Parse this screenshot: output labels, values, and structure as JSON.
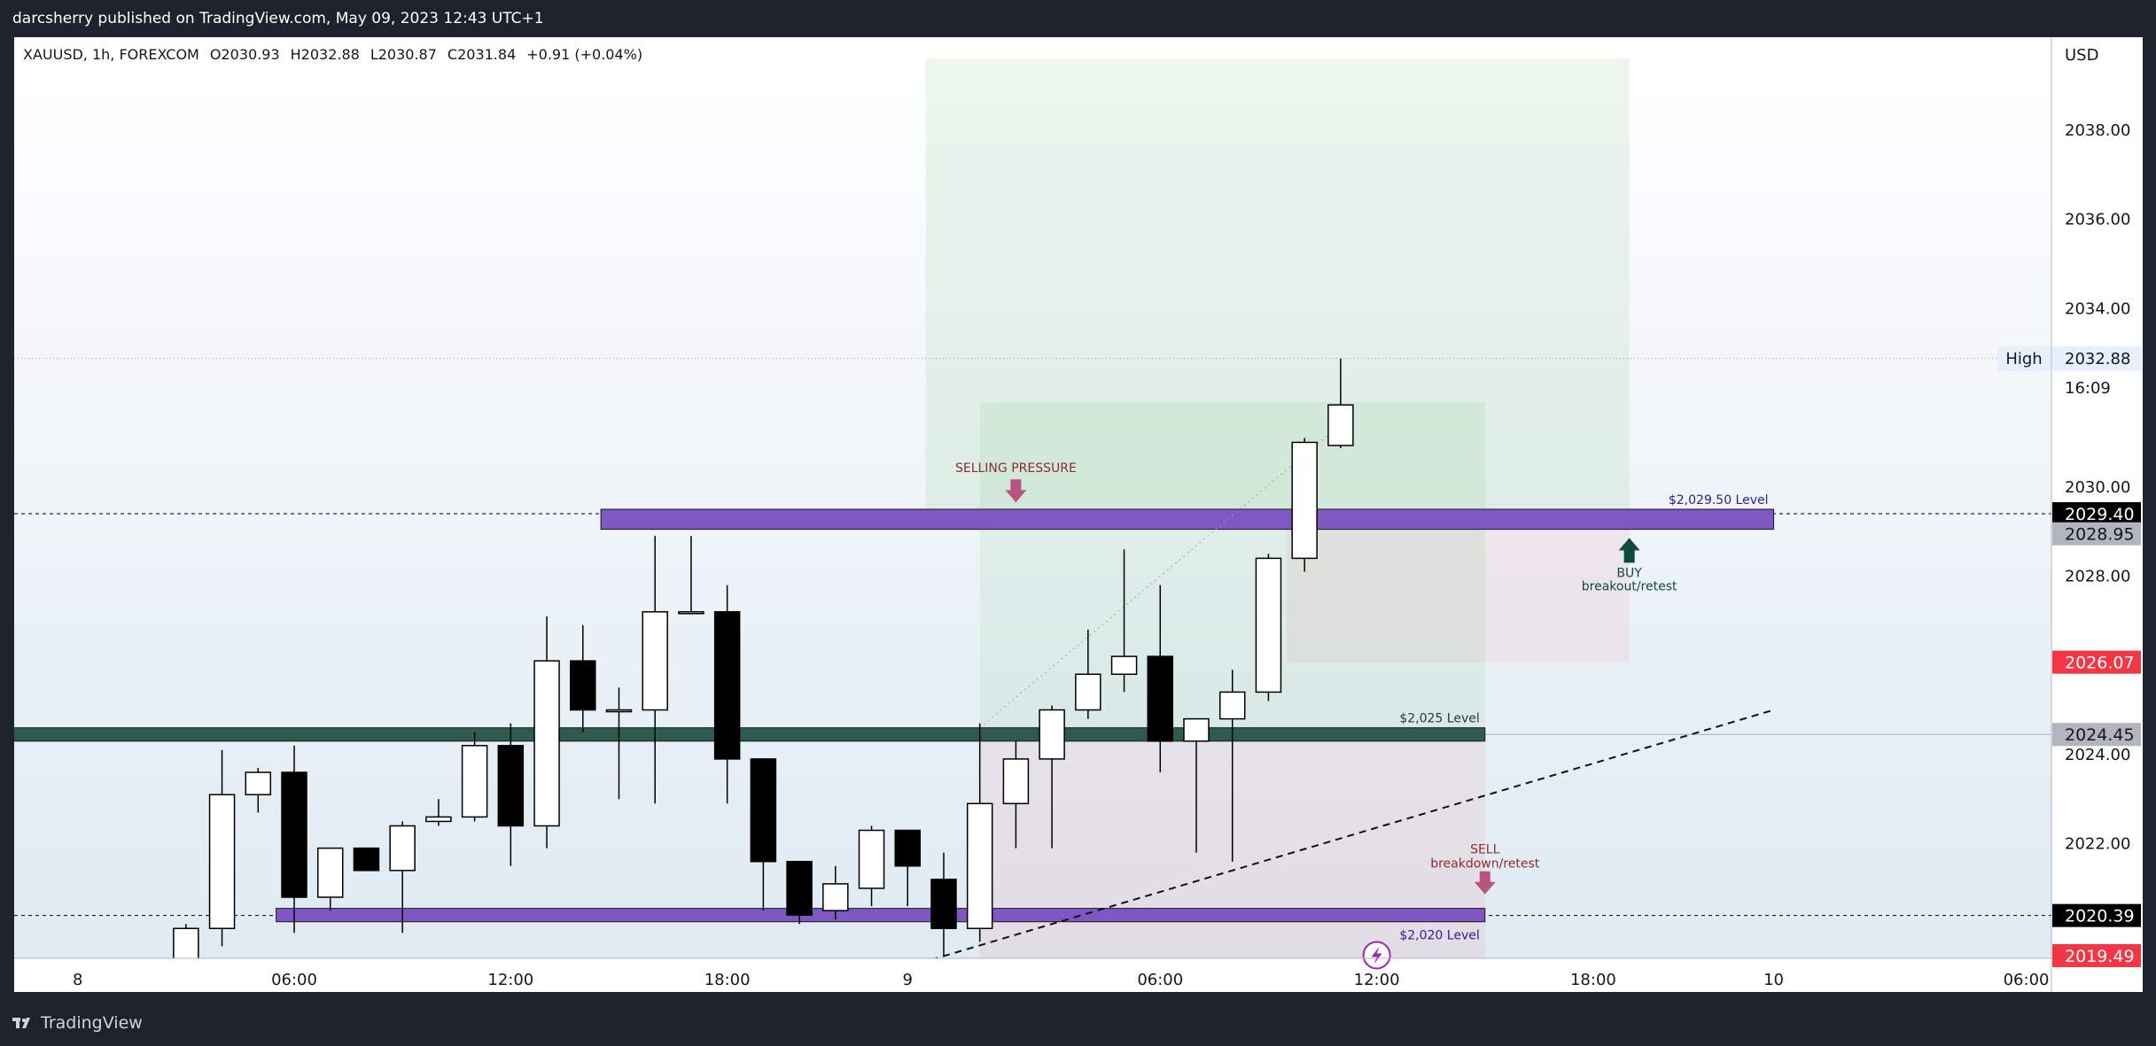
{
  "header": {
    "published_by": "darcsherry published on TradingView.com, May 09, 2023 12:43 UTC+1"
  },
  "footer": {
    "brand": "TradingView"
  },
  "colors": {
    "frame": "#1e222d",
    "bullish": "#ffffff",
    "bearish": "#000000",
    "zone": "#7e57c2",
    "zone_dark": "#2e5a50",
    "high_bg": "#e8f0fb",
    "price_last": "#000000",
    "price_red": "#f23645",
    "price_gray": "#9598a1"
  },
  "chart_data": {
    "type": "candlestick",
    "symbol": "XAUUSD",
    "interval": "1h",
    "exchange": "FOREXCOM",
    "ohlc_header": {
      "symbol_line": "XAUUSD, 1h, FOREXCOM",
      "open": "O2030.93",
      "high": "H2032.88",
      "low": "L2030.87",
      "close": "C2031.84",
      "change": "+0.91 (+0.04%)"
    },
    "currency_label": "USD",
    "y_range": [
      2019.1,
      2039.7
    ],
    "y_ticks": [
      {
        "value": 2038,
        "label": "2038.00"
      },
      {
        "value": 2036,
        "label": "2036.00"
      },
      {
        "value": 2034,
        "label": "2034.00"
      },
      {
        "value": 2030,
        "label": "2030.00"
      },
      {
        "value": 2028,
        "label": "2028.00"
      },
      {
        "value": 2024,
        "label": "2024.00"
      },
      {
        "value": 2022,
        "label": "2022.00"
      }
    ],
    "x_ticks": [
      {
        "index": -6,
        "label": "8"
      },
      {
        "index": 0,
        "label": "06:00"
      },
      {
        "index": 6,
        "label": "12:00"
      },
      {
        "index": 12,
        "label": "18:00"
      },
      {
        "index": 17,
        "label": "9"
      },
      {
        "index": 24,
        "label": "06:00"
      },
      {
        "index": 30,
        "label": "12:00"
      },
      {
        "index": 36,
        "label": "18:00"
      },
      {
        "index": 41,
        "label": "10"
      },
      {
        "index": 48,
        "label": "06:00"
      }
    ],
    "candles": [
      {
        "i": -3,
        "o": 2019.0,
        "h": 2020.2,
        "l": 2019.0,
        "c": 2020.1
      },
      {
        "i": -2,
        "o": 2020.1,
        "h": 2024.1,
        "l": 2019.7,
        "c": 2023.1
      },
      {
        "i": -1,
        "o": 2023.1,
        "h": 2023.7,
        "l": 2022.7,
        "c": 2023.6
      },
      {
        "i": 0,
        "o": 2023.6,
        "h": 2024.2,
        "l": 2020.0,
        "c": 2020.8
      },
      {
        "i": 1,
        "o": 2020.8,
        "h": 2021.8,
        "l": 2020.5,
        "c": 2021.9
      },
      {
        "i": 2,
        "o": 2021.9,
        "h": 2021.9,
        "l": 2021.4,
        "c": 2021.4
      },
      {
        "i": 3,
        "o": 2021.4,
        "h": 2022.5,
        "l": 2020.0,
        "c": 2022.4
      },
      {
        "i": 4,
        "o": 2022.5,
        "h": 2023.0,
        "l": 2022.4,
        "c": 2022.6
      },
      {
        "i": 5,
        "o": 2022.6,
        "h": 2024.5,
        "l": 2022.5,
        "c": 2024.2
      },
      {
        "i": 6,
        "o": 2024.2,
        "h": 2024.7,
        "l": 2021.5,
        "c": 2022.4
      },
      {
        "i": 7,
        "o": 2022.4,
        "h": 2027.1,
        "l": 2021.9,
        "c": 2026.1
      },
      {
        "i": 8,
        "o": 2026.1,
        "h": 2026.9,
        "l": 2024.5,
        "c": 2025.0
      },
      {
        "i": 9,
        "o": 2025.0,
        "h": 2025.5,
        "l": 2023.0,
        "c": 2025.0
      },
      {
        "i": 10,
        "o": 2025.0,
        "h": 2028.9,
        "l": 2022.9,
        "c": 2027.2
      },
      {
        "i": 11,
        "o": 2027.2,
        "h": 2028.9,
        "l": 2027.2,
        "c": 2027.2
      },
      {
        "i": 12,
        "o": 2027.2,
        "h": 2027.8,
        "l": 2022.9,
        "c": 2023.9
      },
      {
        "i": 13,
        "o": 2023.9,
        "h": 2023.9,
        "l": 2020.5,
        "c": 2021.6
      },
      {
        "i": 14,
        "o": 2021.6,
        "h": 2021.6,
        "l": 2020.2,
        "c": 2020.4
      },
      {
        "i": 15,
        "o": 2020.5,
        "h": 2021.5,
        "l": 2020.3,
        "c": 2021.1
      },
      {
        "i": 16,
        "o": 2021.0,
        "h": 2022.4,
        "l": 2020.6,
        "c": 2022.3
      },
      {
        "i": 17,
        "o": 2022.3,
        "h": 2022.3,
        "l": 2020.6,
        "c": 2021.5
      },
      {
        "i": 18,
        "o": 2021.2,
        "h": 2021.8,
        "l": 2019.5,
        "c": 2020.1
      },
      {
        "i": 19,
        "o": 2020.1,
        "h": 2024.7,
        "l": 2019.8,
        "c": 2022.9
      },
      {
        "i": 20,
        "o": 2022.9,
        "h": 2024.3,
        "l": 2021.9,
        "c": 2023.9
      },
      {
        "i": 21,
        "o": 2023.9,
        "h": 2025.1,
        "l": 2021.9,
        "c": 2025.0
      },
      {
        "i": 22,
        "o": 2025.0,
        "h": 2026.8,
        "l": 2024.8,
        "c": 2025.8
      },
      {
        "i": 23,
        "o": 2025.8,
        "h": 2028.6,
        "l": 2025.4,
        "c": 2026.2
      },
      {
        "i": 24,
        "o": 2026.2,
        "h": 2027.8,
        "l": 2023.6,
        "c": 2024.3
      },
      {
        "i": 25,
        "o": 2024.3,
        "h": 2024.8,
        "l": 2021.8,
        "c": 2024.8
      },
      {
        "i": 26,
        "o": 2024.8,
        "h": 2025.9,
        "l": 2021.6,
        "c": 2025.4
      },
      {
        "i": 27,
        "o": 2025.4,
        "h": 2028.5,
        "l": 2025.2,
        "c": 2028.4
      },
      {
        "i": 28,
        "o": 2028.4,
        "h": 2031.1,
        "l": 2028.1,
        "c": 2031.0
      },
      {
        "i": 29,
        "o": 2030.93,
        "h": 2032.88,
        "l": 2030.87,
        "c": 2031.84
      }
    ],
    "zones": [
      {
        "from_index": 9,
        "to_index": 41,
        "top": 2029.5,
        "bottom": 2029.05,
        "color": "#7e57c2",
        "label": "$2,029.50 Level",
        "label_pos": "above-right"
      },
      {
        "from_index": -8,
        "to_index": 33,
        "top": 2024.6,
        "bottom": 2024.3,
        "color": "#2e5a50",
        "label": "$2,025 Level",
        "label_pos": "above-right"
      },
      {
        "from_index": 0,
        "to_index": 33,
        "top": 2020.55,
        "bottom": 2020.25,
        "color": "#7e57c2",
        "label": "$2,020 Level",
        "label_pos": "below-right"
      }
    ],
    "position_boxes": [
      {
        "type": "long",
        "from_index": 18,
        "to_index": 37,
        "entry": 2029.4,
        "target": 2039.6,
        "stop": 2026.07,
        "split_index": 28
      },
      {
        "type": "short",
        "from_index": 19,
        "to_index": 33,
        "entry": 2031.9,
        "target": 2024.45,
        "stop": 2019.1
      }
    ],
    "annotations": [
      {
        "text": "SELLING PRESSURE",
        "index": 20,
        "value": 2030.25,
        "color": "#8e2b2b",
        "arrow": "down"
      },
      {
        "text": "BUY",
        "text2": "breakout/retest",
        "index": 37,
        "value": 2028.3,
        "color": "#0f4a3e",
        "arrow": "up"
      },
      {
        "text": "SELL",
        "text2": "breakdown/retest",
        "index": 33,
        "value": 2021.7,
        "color": "#8e2b2b",
        "arrow": "down"
      }
    ],
    "high_marker": {
      "label": "High",
      "value": 2032.88,
      "value_label": "2032.88",
      "countdown": "16:09"
    },
    "price_labels": [
      {
        "value": 2029.4,
        "label": "2029.40",
        "bg": "#000000",
        "fg": "#ffffff"
      },
      {
        "value": 2028.95,
        "label": "2028.95",
        "bg": "#b2b5be",
        "fg": "#131722"
      },
      {
        "value": 2026.07,
        "label": "2026.07",
        "bg": "#f23645",
        "fg": "#ffffff"
      },
      {
        "value": 2024.45,
        "label": "2024.45",
        "bg": "#b2b5be",
        "fg": "#131722"
      },
      {
        "value": 2020.39,
        "label": "2020.39",
        "bg": "#000000",
        "fg": "#ffffff"
      },
      {
        "value": 2019.49,
        "label": "2019.49",
        "bg": "#f23645",
        "fg": "#ffffff"
      }
    ],
    "horizontal_lines": [
      {
        "value": 2032.88,
        "style": "dotted"
      },
      {
        "value": 2029.4,
        "style": "dashed"
      },
      {
        "value": 2020.39,
        "style": "dashed"
      },
      {
        "value": 2024.45,
        "style": "solid-light"
      }
    ],
    "trend_lines": [
      {
        "from_index": 16,
        "from_value": 2019.0,
        "to_index": 41,
        "to_value": 2025.0,
        "style": "dashed"
      },
      {
        "from_index": 19,
        "from_value": 2024.6,
        "to_index": 29,
        "to_value": 2031.4,
        "style": "dotted"
      }
    ],
    "grid": false,
    "legend": "none"
  }
}
